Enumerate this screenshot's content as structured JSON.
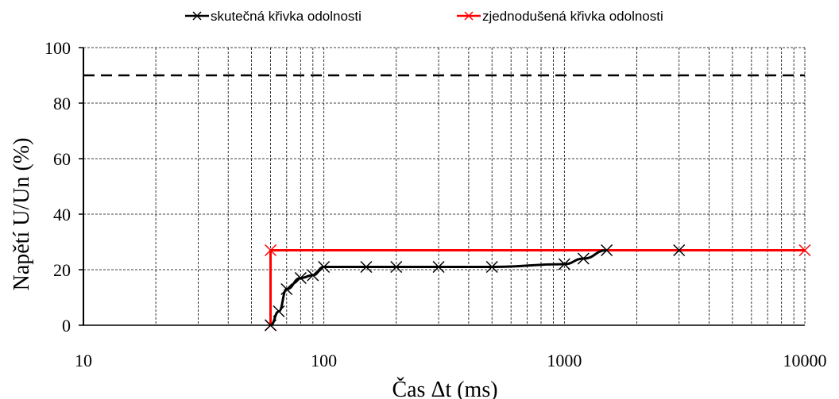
{
  "chart_data": {
    "type": "line",
    "xlabel": "Čas Δt (ms)",
    "ylabel": "Napětí U/Un (%)",
    "xscale": "log",
    "xlim": [
      10,
      10000
    ],
    "ylim": [
      0,
      100
    ],
    "xticks": [
      10,
      100,
      1000,
      10000
    ],
    "yticks": [
      0,
      20,
      40,
      60,
      80,
      100
    ],
    "grid": "major and minor, dashed",
    "legend": "top-center",
    "reference_line": {
      "y": 90,
      "style": "dashed",
      "color": "#000000"
    },
    "series": [
      {
        "name": "skutečná křivka odolnosti",
        "color": "#000000",
        "marker": "x",
        "x": [
          60,
          65,
          70,
          80,
          90,
          100,
          150,
          200,
          300,
          500,
          1000,
          1200,
          1500
        ],
        "y": [
          0,
          5,
          13,
          17,
          18,
          21,
          21,
          21,
          21,
          21,
          22,
          24,
          27
        ]
      },
      {
        "name": "zjednodušená křivka odolnosti",
        "color": "#ff0000",
        "marker": "x",
        "x": [
          60,
          60,
          10000
        ],
        "y": [
          0,
          27,
          27
        ]
      }
    ],
    "extra_markers": [
      {
        "series": "skutečná křivka odolnosti",
        "x": 3000,
        "y": 27
      }
    ]
  }
}
